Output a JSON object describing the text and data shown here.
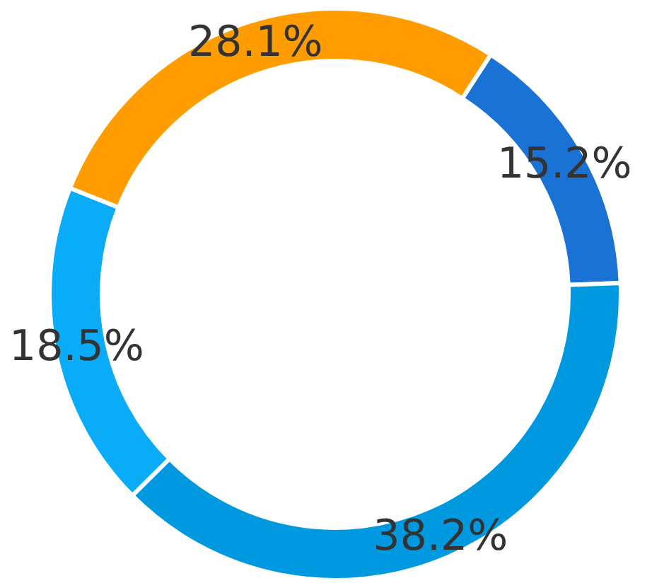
{
  "chart_data": {
    "type": "donut",
    "categories": [
      null,
      null,
      null,
      null
    ],
    "values": [
      15.2,
      38.2,
      18.5,
      28.1
    ],
    "colors": [
      "#1a73d4",
      "#0099e0",
      "#0aabf7",
      "#ff9d00"
    ],
    "value_labels": [
      "15.2%",
      "38.2%",
      "18.5%",
      "28.1%"
    ]
  }
}
